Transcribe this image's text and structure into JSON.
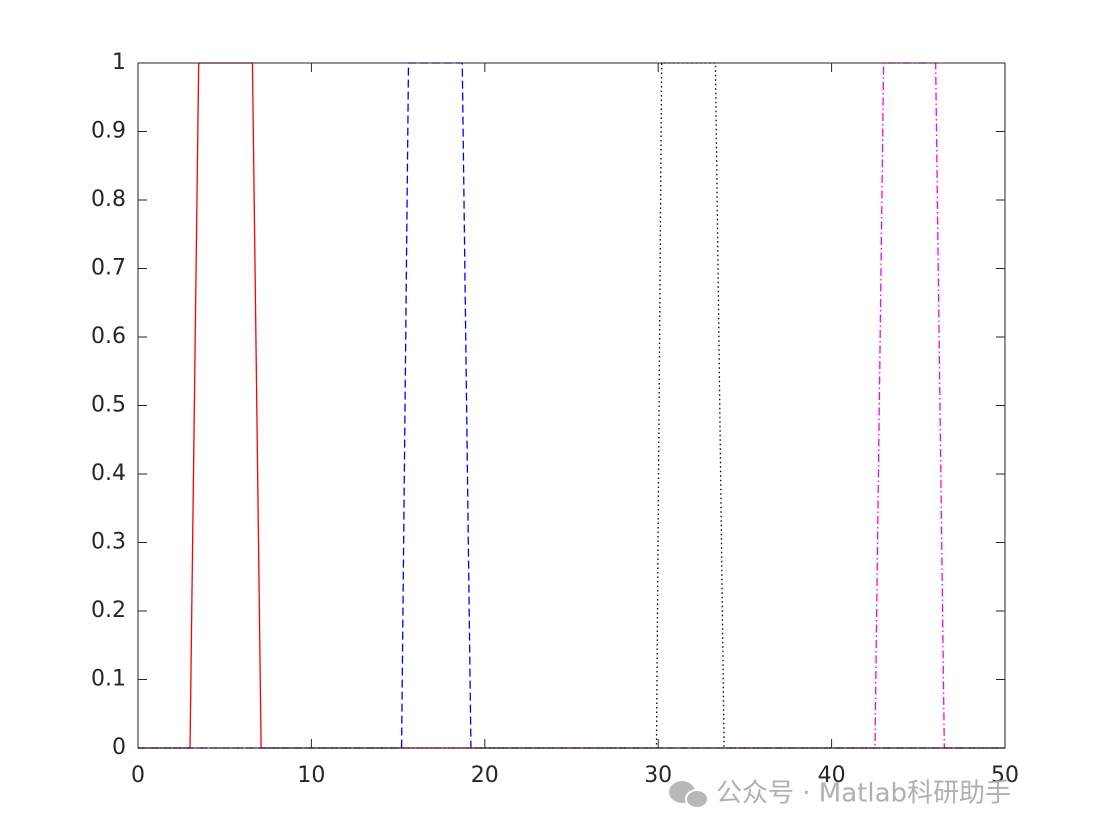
{
  "chart_data": {
    "type": "line",
    "xlim": [
      0,
      50
    ],
    "xticks": [
      0,
      10,
      20,
      30,
      40,
      50
    ],
    "ylim": [
      0,
      1
    ],
    "yticks": [
      0,
      0.1,
      0.2,
      0.3,
      0.4,
      0.5,
      0.6,
      0.7,
      0.8,
      0.9,
      1
    ],
    "box": true,
    "series": [
      {
        "color": "#ff0000",
        "style": "solid",
        "x": [
          0,
          3,
          3.5,
          6.6,
          7.1,
          50
        ],
        "values": [
          0,
          0,
          1,
          1,
          0,
          0
        ]
      },
      {
        "color": "#0000ff",
        "style": "dashed",
        "x": [
          0,
          15.2,
          15.6,
          18.7,
          19.2,
          50
        ],
        "values": [
          0,
          0,
          1,
          1,
          0,
          0
        ]
      },
      {
        "color": "#000000",
        "style": "dotted",
        "x": [
          0,
          29.9,
          30.2,
          33.3,
          33.8,
          50
        ],
        "values": [
          0,
          0,
          1,
          1,
          0,
          0
        ]
      },
      {
        "color": "#ff00ff",
        "style": "dashdot",
        "x": [
          0,
          42.5,
          43,
          46,
          46.5,
          50
        ],
        "values": [
          0,
          0,
          1,
          1,
          0,
          0
        ]
      }
    ],
    "watermark": "公众号 · Matlab科研助手"
  }
}
